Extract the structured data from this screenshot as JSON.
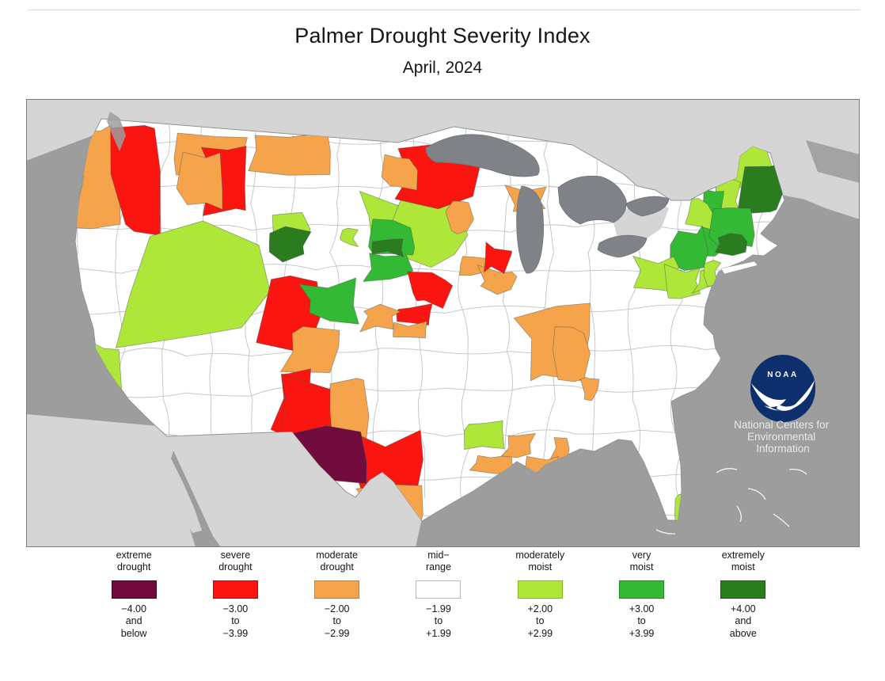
{
  "page": {
    "title": "Palmer Drought Severity Index",
    "subtitle": "April, 2024"
  },
  "noaa": {
    "abbr": "NOAA",
    "org_lines": [
      "National Centers for",
      "Environmental",
      "Information"
    ]
  },
  "map": {
    "colors": {
      "ocean": "#9d9d9d",
      "other_land": "#d5d5d5",
      "lakes": "#7f8387",
      "us_fill": "#ffffff",
      "us_border": "#8e9494",
      "division_line": "#b9bdbd",
      "frame": "#7a7a7a",
      "logo_navy": "#0e2f6e",
      "logo_cyan": "#2ea3dc",
      "logo_text": "#e9e9e9"
    }
  },
  "legend": {
    "items": [
      {
        "key": "extreme-drought",
        "label_lines": [
          "extreme",
          "drought"
        ],
        "range_lines": [
          "−4.00",
          "and",
          "below"
        ],
        "color": "#730c3e",
        "border": "#41051f"
      },
      {
        "key": "severe-drought",
        "label_lines": [
          "severe",
          "drought"
        ],
        "range_lines": [
          "−3.00",
          "to",
          "−3.99"
        ],
        "color": "#fb1510",
        "border": "#b50b08"
      },
      {
        "key": "moderate-drought",
        "label_lines": [
          "moderate",
          "drought"
        ],
        "range_lines": [
          "−2.00",
          "to",
          "−2.99"
        ],
        "color": "#f6a44c",
        "border": "#c67c2c"
      },
      {
        "key": "mid-range",
        "label_lines": [
          "mid−",
          "range"
        ],
        "range_lines": [
          "−1.99",
          "to",
          "+1.99"
        ],
        "color": "#ffffff",
        "border": "#b8b8b8"
      },
      {
        "key": "moderately-moist",
        "label_lines": [
          "moderately",
          "moist"
        ],
        "range_lines": [
          "+2.00",
          "to",
          "+2.99"
        ],
        "color": "#aee63a",
        "border": "#85b51f"
      },
      {
        "key": "very-moist",
        "label_lines": [
          "very",
          "moist"
        ],
        "range_lines": [
          "+3.00",
          "to",
          "+3.99"
        ],
        "color": "#33b933",
        "border": "#1f8a1f"
      },
      {
        "key": "extremely-moist",
        "label_lines": [
          "extremely",
          "moist"
        ],
        "range_lines": [
          "+4.00",
          "and",
          "above"
        ],
        "color": "#2b7c1f",
        "border": "#1c5413"
      }
    ]
  },
  "chart_data": {
    "type": "choropleth_map",
    "title": "Palmer Drought Severity Index",
    "period": "April, 2024",
    "region": "Contiguous United States (climate divisions)",
    "source_logo": "NOAA National Centers for Environmental Information",
    "categories": [
      {
        "label": "extreme drought",
        "range": "-4.00 and below",
        "color": "#730c3e"
      },
      {
        "label": "severe drought",
        "range": "-3.00 to -3.99",
        "color": "#fb1510"
      },
      {
        "label": "moderate drought",
        "range": "-2.00 to -2.99",
        "color": "#f6a44c"
      },
      {
        "label": "mid-range",
        "range": "-1.99 to +1.99",
        "color": "#ffffff"
      },
      {
        "label": "moderately moist",
        "range": "+2.00 to +2.99",
        "color": "#aee63a"
      },
      {
        "label": "very moist",
        "range": "+3.00 to +3.99",
        "color": "#33b933"
      },
      {
        "label": "extremely moist",
        "range": "+4.00 and above",
        "color": "#2b7c1f"
      }
    ],
    "readings_by_category": {
      "extreme_drought": [
        "west Texas / Big Bend region"
      ],
      "severe_drought": [
        "Washington Cascades strip",
        "north-central Montana",
        "northern Minnesota",
        "eastern Utah & western Colorado",
        "southeast Arizona / southwest New Mexico",
        "southwest Texas around Big Bend",
        "Nebraska & Kansas patches",
        "eastern Iowa patch"
      ],
      "moderate_drought": [
        "western Washington",
        "northern Idaho–Montana border strip",
        "central Idaho",
        "southern Utah / northern Arizona",
        "eastern New Mexico strip",
        "Rio Grande valley Texas",
        "Gulf-coast Louisiana",
        "southeast Missouri / southern Illinois",
        "Arkansas",
        "western Tennessee",
        "western Minnesota & Iowa patches",
        "northern Wisconsin patch"
      ],
      "mid_range": [
        "most remaining divisions (white)"
      ],
      "moderately_moist": [
        "Nevada",
        "central California coast",
        "North & South Dakota cluster",
        "western Wyoming patch",
        "northeast Pennsylvania / southern New York",
        "interior Maine",
        "northeast Louisiana patch",
        "Florida east-coast strip"
      ],
      "very_moist": [
        "central South Dakota",
        "north-central Colorado patch",
        "eastern New York / Vermont",
        "southern New England"
      ],
      "extremely_moist": [
        "coastal Maine",
        "Connecticut patch",
        "western Wyoming small patch",
        "small central South Dakota division"
      ]
    }
  }
}
